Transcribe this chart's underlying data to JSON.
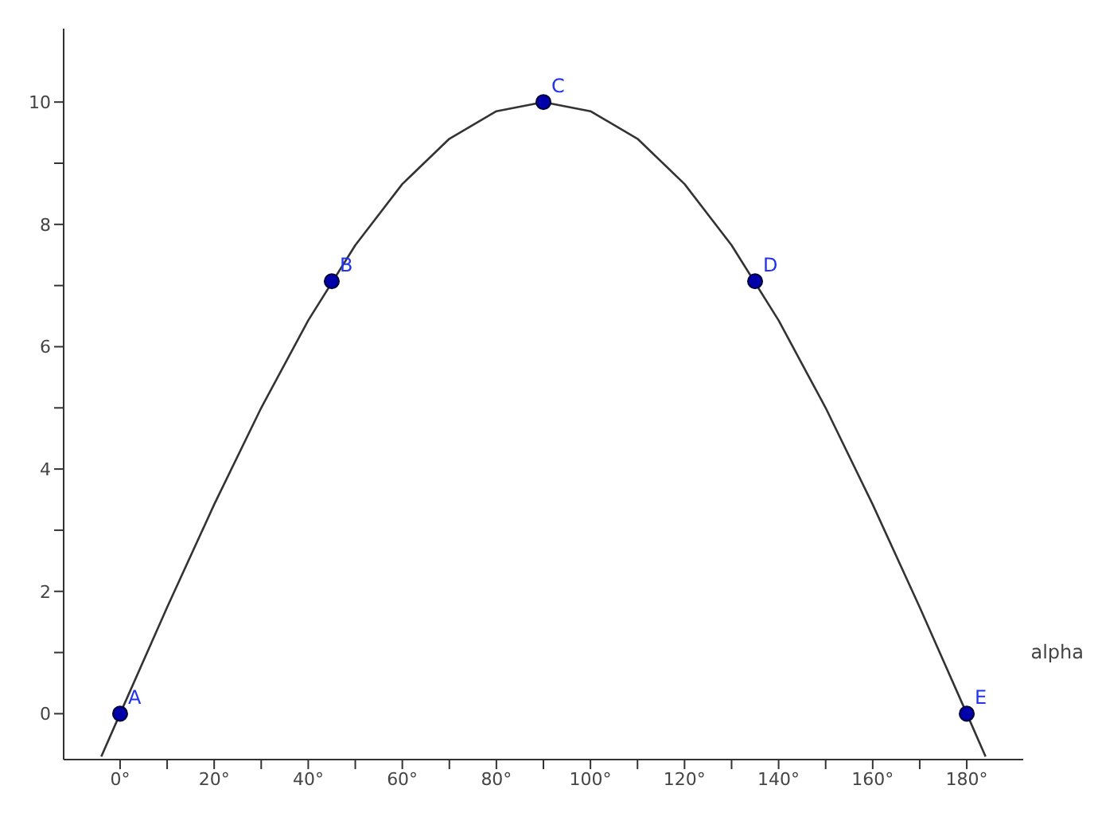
{
  "chart_data": {
    "type": "line",
    "xlabel": "alpha",
    "series": [
      {
        "color": "#333333",
        "marker": "none",
        "x": [
          -4,
          0,
          10,
          20,
          30,
          40,
          50,
          60,
          70,
          80,
          90,
          100,
          110,
          120,
          130,
          140,
          150,
          160,
          170,
          180,
          184
        ],
        "values": [
          -0.7,
          0,
          1.74,
          3.42,
          5,
          6.43,
          7.66,
          8.66,
          9.4,
          9.85,
          10,
          9.85,
          9.4,
          8.66,
          7.66,
          6.43,
          5,
          3.42,
          1.74,
          0,
          -0.7
        ]
      },
      {
        "type": "scatter",
        "color": "#0000aa",
        "marker": "circle",
        "x": [
          0,
          45,
          90,
          135,
          180
        ],
        "values": [
          0,
          7.07,
          10,
          7.07,
          0
        ]
      }
    ],
    "annotations": [
      {
        "text": "A",
        "x": 0,
        "y": 0
      },
      {
        "text": "B",
        "x": 45,
        "y": 7.07
      },
      {
        "text": "C",
        "x": 90,
        "y": 10
      },
      {
        "text": "D",
        "x": 135,
        "y": 7.07
      },
      {
        "text": "E",
        "x": 180,
        "y": 0
      }
    ],
    "xlim": [
      -12,
      192
    ],
    "ylim": [
      -0.75,
      11.2
    ],
    "xticks": [
      {
        "value": 0,
        "label": "0°"
      },
      {
        "value": 10,
        "label": null
      },
      {
        "value": 20,
        "label": "20°"
      },
      {
        "value": 30,
        "label": null
      },
      {
        "value": 40,
        "label": "40°"
      },
      {
        "value": 50,
        "label": null
      },
      {
        "value": 60,
        "label": "60°"
      },
      {
        "value": 70,
        "label": null
      },
      {
        "value": 80,
        "label": "80°"
      },
      {
        "value": 90,
        "label": null
      },
      {
        "value": 100,
        "label": "100°"
      },
      {
        "value": 110,
        "label": null
      },
      {
        "value": 120,
        "label": "120°"
      },
      {
        "value": 130,
        "label": null
      },
      {
        "value": 140,
        "label": "140°"
      },
      {
        "value": 150,
        "label": null
      },
      {
        "value": 160,
        "label": "160°"
      },
      {
        "value": 170,
        "label": null
      },
      {
        "value": 180,
        "label": "180°"
      }
    ],
    "yticks": [
      0,
      {
        "value": 1,
        "label": null
      },
      2,
      {
        "value": 3,
        "label": null
      },
      4,
      {
        "value": 5,
        "label": null
      },
      6,
      {
        "value": 7,
        "label": null
      },
      8,
      {
        "value": 9,
        "label": null
      },
      10
    ],
    "grid": false,
    "legend": false
  }
}
